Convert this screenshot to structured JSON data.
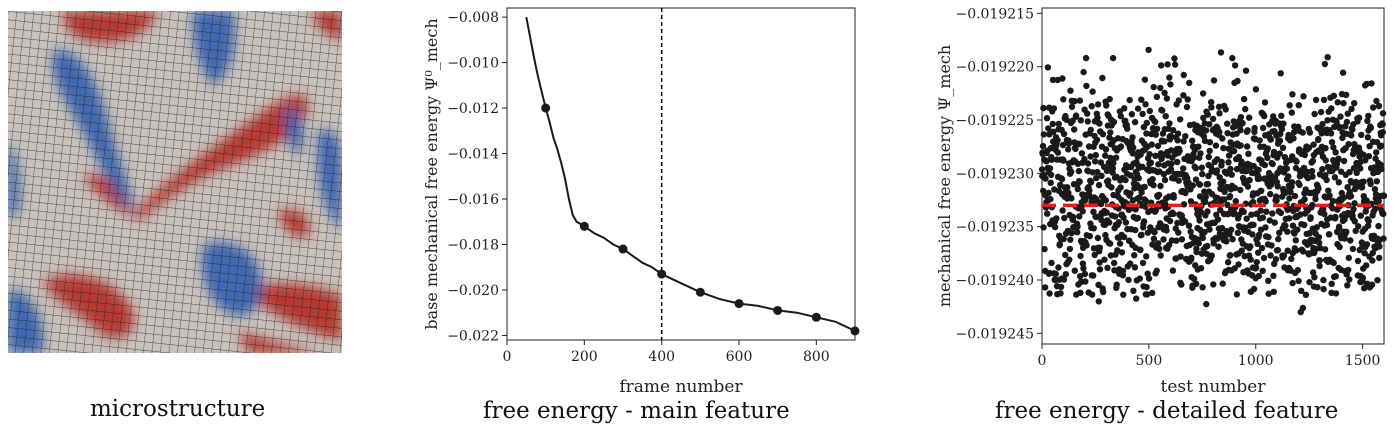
{
  "captions": {
    "microstructure": "microstructure",
    "main": "free energy - main feature",
    "detailed": "free energy - detailed feature"
  },
  "colors": {
    "red": "#b5312b",
    "blue": "#3a62b0",
    "neutral": "#c9c2bc",
    "grid": "#1b1b1b",
    "mean_line": "#e02020",
    "series": "#1a1a1a"
  },
  "chart_data": [
    {
      "type": "line",
      "title": "",
      "xlabel": "frame number",
      "ylabel": "base mechanical free energy Ψ⁰_mech",
      "xlim": [
        0,
        900
      ],
      "ylim": [
        -0.0222,
        -0.0076
      ],
      "xticks": [
        0,
        200,
        400,
        600,
        800
      ],
      "yticks": [
        -0.008,
        -0.01,
        -0.012,
        -0.014,
        -0.016,
        -0.018,
        -0.02,
        -0.022
      ],
      "ytick_labels": [
        "−0.008",
        "−0.010",
        "−0.012",
        "−0.014",
        "−0.016",
        "−0.018",
        "−0.020",
        "−0.022"
      ],
      "curve": {
        "x": [
          50,
          60,
          70,
          80,
          90,
          100,
          110,
          120,
          130,
          140,
          150,
          160,
          170,
          180,
          190,
          200,
          225,
          250,
          275,
          300,
          325,
          350,
          375,
          400,
          450,
          500,
          550,
          600,
          650,
          700,
          750,
          800,
          850,
          900
        ],
        "y": [
          -0.008,
          -0.0089,
          -0.0098,
          -0.0106,
          -0.0113,
          -0.012,
          -0.0126,
          -0.0133,
          -0.0138,
          -0.0144,
          -0.0151,
          -0.016,
          -0.0167,
          -0.017,
          -0.0171,
          -0.0172,
          -0.0175,
          -0.0177,
          -0.018,
          -0.0182,
          -0.0185,
          -0.0188,
          -0.019,
          -0.0193,
          -0.0197,
          -0.0201,
          -0.0204,
          -0.0206,
          -0.0207,
          -0.0209,
          -0.021,
          -0.0212,
          -0.0214,
          -0.0218
        ]
      },
      "markers": {
        "x": [
          100,
          200,
          300,
          400,
          500,
          600,
          700,
          800,
          900
        ],
        "y": [
          -0.012,
          -0.0172,
          -0.0182,
          -0.0193,
          -0.0201,
          -0.0206,
          -0.0209,
          -0.0212,
          -0.0218
        ]
      },
      "vline_x": 400
    },
    {
      "type": "scatter",
      "title": "",
      "xlabel": "test number",
      "ylabel": "mechanical free energy Ψ_mech",
      "xlim": [
        0,
        1600
      ],
      "ylim": [
        -0.019246,
        -0.0192145
      ],
      "xticks": [
        0,
        500,
        1000,
        1500
      ],
      "yticks": [
        -0.019215,
        -0.01922,
        -0.019225,
        -0.01923,
        -0.019235,
        -0.01924,
        -0.019245
      ],
      "ytick_labels": [
        "−0.019215",
        "−0.019220",
        "−0.019225",
        "−0.019230",
        "−0.019235",
        "−0.019240",
        "−0.019245"
      ],
      "n_points": 1600,
      "mean": -0.019233,
      "y_spread": [
        -0.0192445,
        -0.0192165
      ],
      "mean_line_style": "dashed"
    }
  ]
}
